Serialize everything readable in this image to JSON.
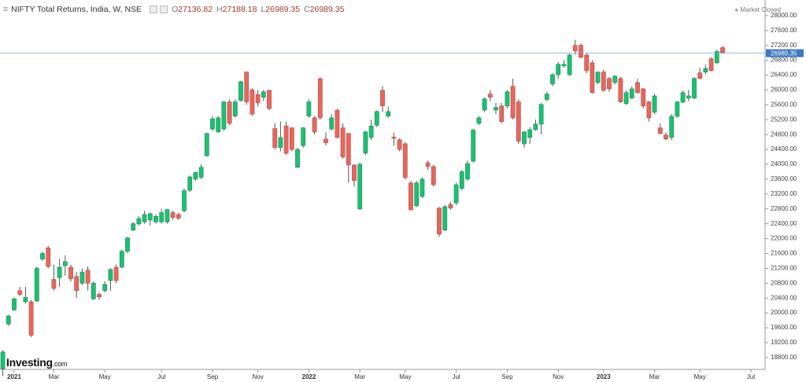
{
  "header": {
    "title": "NIFTY Total Returns, India, W, NSE",
    "ohlc": [
      {
        "key": "O",
        "value": 27136.82
      },
      {
        "key": "H",
        "value": 27188.18
      },
      {
        "key": "L",
        "value": 26989.35
      },
      {
        "key": "C",
        "value": 26989.35
      }
    ],
    "status": "Market Closed"
  },
  "logo": {
    "brand": "Investing",
    "suffix": ".com"
  },
  "chart_data": {
    "type": "candlestick",
    "categories": [
      null,
      null,
      "2021",
      null,
      null,
      null,
      null,
      null,
      null,
      "Mar",
      null,
      null,
      null,
      null,
      null,
      null,
      null,
      null,
      "May",
      null,
      null,
      null,
      null,
      null,
      null,
      null,
      null,
      null,
      "Jul",
      null,
      null,
      null,
      null,
      null,
      null,
      null,
      null,
      "Sep",
      null,
      null,
      null,
      null,
      null,
      null,
      null,
      "Nov",
      null,
      null,
      null,
      null,
      null,
      null,
      null,
      null,
      "2022",
      null,
      null,
      null,
      null,
      null,
      null,
      null,
      null,
      "Mar",
      null,
      null,
      null,
      null,
      null,
      null,
      null,
      "May",
      null,
      null,
      null,
      null,
      null,
      null,
      null,
      null,
      "Jul",
      null,
      null,
      null,
      null,
      null,
      null,
      null,
      null,
      "Sep",
      null,
      null,
      null,
      null,
      null,
      null,
      null,
      null,
      "Nov",
      null,
      null,
      null,
      null,
      null,
      null,
      null,
      "2023",
      null,
      null,
      null,
      null,
      null,
      null,
      null,
      null,
      "Mar",
      null,
      null,
      null,
      null,
      null,
      null,
      null,
      "May",
      null,
      null,
      null,
      null,
      null,
      null,
      null,
      null,
      "Jul",
      null,
      null
    ],
    "open": [
      18500,
      19700,
      20080,
      20600,
      20300,
      20300,
      20320,
      21450,
      21750,
      20900,
      20950,
      21270,
      21230,
      20980,
      20800,
      21150,
      20380,
      20500,
      20600,
      20870,
      21230,
      21230,
      21660,
      22230,
      22400,
      22450,
      22500,
      22450,
      22450,
      22450,
      22700,
      22650,
      22750,
      23300,
      23600,
      23650,
      24230,
      24950,
      24870,
      24950,
      25680,
      25300,
      25720,
      26480,
      26000,
      25880,
      25800,
      25990,
      24960,
      24450,
      25030,
      24980,
      23920,
      24500,
      25300,
      25250,
      26300,
      24680,
      24950,
      25450,
      24980,
      24830,
      23980,
      22800,
      24300,
      24720,
      25050,
      25990,
      25300,
      24730,
      24660,
      24550,
      23500,
      22880,
      23130,
      24040,
      23940,
      22820,
      22230,
      22920,
      22960,
      23350,
      23600,
      24080,
      25100,
      25460,
      25890,
      25460,
      25570,
      25570,
      26100,
      25680,
      24550,
      24720,
      24930,
      25080,
      25740,
      26160,
      26410,
      26650,
      26410,
      27200,
      27200,
      26940,
      26730,
      26200,
      26480,
      26310,
      26200,
      26310,
      25630,
      25780,
      26200,
      26030,
      25680,
      25400,
      24980,
      24790,
      24720,
      25290,
      25670,
      25780,
      25780,
      26460,
      26480,
      26840,
      26730,
      27136.82,
      null,
      null,
      null,
      null,
      null,
      null,
      null
    ],
    "high": [
      19000,
      19950,
      20420,
      20700,
      20700,
      20350,
      21250,
      21650,
      21800,
      21300,
      21450,
      21550,
      21300,
      21100,
      21200,
      21250,
      20850,
      20550,
      20850,
      21200,
      21300,
      21700,
      22050,
      22450,
      22600,
      22750,
      22700,
      22650,
      22800,
      22800,
      22750,
      22700,
      23350,
      23700,
      23800,
      24000,
      24850,
      25300,
      25300,
      25700,
      25750,
      25750,
      26250,
      26500,
      26050,
      26000,
      26000,
      26000,
      25100,
      25150,
      25150,
      25000,
      24450,
      25000,
      25750,
      25300,
      26350,
      24850,
      25350,
      25500,
      25100,
      24850,
      24000,
      24050,
      24900,
      25200,
      25450,
      26100,
      25550,
      24850,
      24700,
      24600,
      23550,
      23550,
      23650,
      24100,
      23980,
      22850,
      22900,
      23000,
      23500,
      23850,
      24100,
      24950,
      25300,
      25800,
      26000,
      25650,
      25650,
      26000,
      26300,
      25750,
      24900,
      25000,
      25200,
      25650,
      25950,
      26450,
      26750,
      26800,
      26980,
      27350,
      27250,
      27000,
      26800,
      26500,
      26550,
      26350,
      26400,
      26350,
      25990,
      26100,
      26300,
      26050,
      25700,
      25900,
      25100,
      24850,
      25350,
      25700,
      25980,
      26000,
      26350,
      26600,
      26680,
      26880,
      27080,
      27188.18,
      null,
      null,
      null,
      null,
      null,
      null,
      null
    ],
    "low": [
      18300,
      19650,
      20050,
      20450,
      20250,
      19350,
      20300,
      21400,
      21200,
      20600,
      20700,
      21000,
      20850,
      20400,
      20750,
      20600,
      20350,
      20350,
      20550,
      20600,
      20800,
      21200,
      21600,
      22200,
      22350,
      22400,
      22350,
      22400,
      22400,
      22400,
      22500,
      22500,
      22700,
      23250,
      23550,
      23600,
      24200,
      24900,
      24850,
      24900,
      25050,
      25250,
      25680,
      25600,
      25300,
      25550,
      25700,
      25450,
      24400,
      24350,
      24250,
      24350,
      23900,
      24450,
      25250,
      24800,
      25200,
      24500,
      24900,
      24700,
      24150,
      23500,
      23400,
      22780,
      24250,
      24650,
      25000,
      25400,
      25250,
      24500,
      24350,
      23600,
      22750,
      22850,
      23100,
      23850,
      23400,
      22050,
      22200,
      22780,
      22900,
      23300,
      23550,
      24050,
      25050,
      25400,
      25700,
      25350,
      25100,
      25500,
      25200,
      24550,
      24450,
      24550,
      24900,
      24800,
      25700,
      26100,
      26300,
      26600,
      26380,
      26950,
      26850,
      26450,
      25900,
      26150,
      25950,
      25950,
      26150,
      25650,
      25600,
      25750,
      25900,
      25500,
      25150,
      25350,
      24800,
      24650,
      24650,
      25250,
      25650,
      25700,
      25750,
      26280,
      26420,
      26500,
      26700,
      26989.35,
      null,
      null,
      null,
      null,
      null,
      null,
      null
    ],
    "close": [
      18950,
      19920,
      20380,
      20500,
      20420,
      19400,
      21200,
      21600,
      21250,
      20660,
      21230,
      21380,
      20920,
      20600,
      21100,
      20800,
      20800,
      20430,
      20770,
      21170,
      20870,
      21660,
      22020,
      22400,
      22540,
      22650,
      22670,
      22600,
      22700,
      22780,
      22570,
      22550,
      23290,
      23660,
      23780,
      23920,
      24830,
      25220,
      25250,
      25680,
      25100,
      25680,
      26220,
      25680,
      25350,
      25650,
      25950,
      25500,
      24450,
      24720,
      24300,
      24400,
      24400,
      24980,
      25680,
      24870,
      25250,
      24580,
      25250,
      24720,
      24200,
      23980,
      23560,
      24000,
      24870,
      25030,
      25420,
      25570,
      25420,
      24700,
      24400,
      23640,
      22780,
      23500,
      23600,
      23940,
      23450,
      22120,
      22860,
      22820,
      23450,
      23800,
      24020,
      24920,
      25250,
      25760,
      25800,
      25530,
      25150,
      25950,
      25250,
      24620,
      24870,
      24930,
      25080,
      25610,
      25890,
      26410,
      26690,
      26690,
      26940,
      27050,
      26880,
      26520,
      25930,
      26480,
      25990,
      26030,
      26370,
      25680,
      25930,
      26030,
      25930,
      25570,
      25250,
      25840,
      24830,
      24680,
      25290,
      25680,
      25930,
      25840,
      26310,
      26310,
      26580,
      26520,
      27040,
      26989.35,
      null,
      null,
      null,
      null,
      null,
      null,
      null
    ],
    "up_color": "#1fbf73",
    "down_color": "#e4685e",
    "last_price": 26989.35,
    "last_price_color": "#3d78c6",
    "ylim": [
      18480,
      28420
    ],
    "yticks": [
      {
        "value": 18800,
        "label": "18800.00"
      },
      {
        "value": 19200,
        "label": "19200.00"
      },
      {
        "value": 19600,
        "label": "19600.00"
      },
      {
        "value": 20000,
        "label": "20000.00"
      },
      {
        "value": 20400,
        "label": "20400.00"
      },
      {
        "value": 20800,
        "label": "20800.00"
      },
      {
        "value": 21200,
        "label": "21200.00"
      },
      {
        "value": 21600,
        "label": "21600.00"
      },
      {
        "value": 22000,
        "label": "22000.00"
      },
      {
        "value": 22400,
        "label": "22400.00"
      },
      {
        "value": 22800,
        "label": "22800.00"
      },
      {
        "value": 23200,
        "label": "23200.00"
      },
      {
        "value": 23600,
        "label": "23600.00"
      },
      {
        "value": 24000,
        "label": "24000.00"
      },
      {
        "value": 24400,
        "label": "24400.00"
      },
      {
        "value": 24800,
        "label": "24800.00"
      },
      {
        "value": 25200,
        "label": "25200.00"
      },
      {
        "value": 25600,
        "label": "25600.00"
      },
      {
        "value": 26000,
        "label": "26000.00"
      },
      {
        "value": 26400,
        "label": "26400.00"
      },
      {
        "value": 26800,
        "label": "26800.00"
      },
      {
        "value": 27200,
        "label": "27200.00"
      },
      {
        "value": 27600,
        "label": "27600.00"
      },
      {
        "value": 28000,
        "label": "28000.00"
      }
    ],
    "grid": false
  }
}
